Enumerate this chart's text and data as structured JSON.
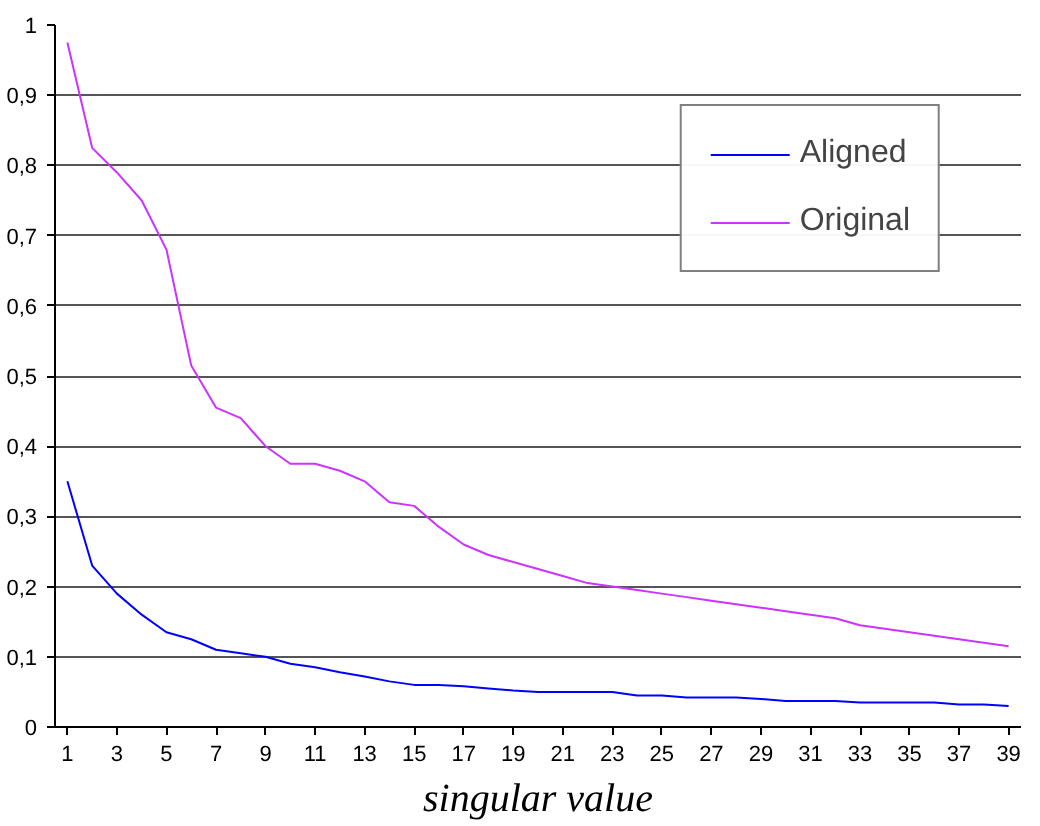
{
  "chart_data": {
    "type": "line",
    "xlabel": "singular value",
    "x": [
      1,
      2,
      3,
      4,
      5,
      6,
      7,
      8,
      9,
      10,
      11,
      12,
      13,
      14,
      15,
      16,
      17,
      18,
      19,
      20,
      21,
      22,
      23,
      24,
      25,
      26,
      27,
      28,
      29,
      30,
      31,
      32,
      33,
      34,
      35,
      36,
      37,
      38,
      39
    ],
    "series": [
      {
        "name": "Aligned",
        "color": "#0000ff",
        "values": [
          0.35,
          0.23,
          0.19,
          0.16,
          0.135,
          0.125,
          0.11,
          0.105,
          0.1,
          0.09,
          0.085,
          0.078,
          0.072,
          0.065,
          0.06,
          0.06,
          0.058,
          0.055,
          0.052,
          0.05,
          0.05,
          0.05,
          0.05,
          0.045,
          0.045,
          0.042,
          0.042,
          0.042,
          0.04,
          0.037,
          0.037,
          0.037,
          0.035,
          0.035,
          0.035,
          0.035,
          0.032,
          0.032,
          0.03
        ]
      },
      {
        "name": "Original",
        "color": "#cc33ff",
        "values": [
          0.975,
          0.825,
          0.79,
          0.75,
          0.68,
          0.515,
          0.455,
          0.44,
          0.4,
          0.375,
          0.375,
          0.365,
          0.35,
          0.32,
          0.315,
          0.285,
          0.26,
          0.245,
          0.235,
          0.225,
          0.215,
          0.205,
          0.2,
          0.195,
          0.19,
          0.185,
          0.18,
          0.175,
          0.17,
          0.165,
          0.16,
          0.155,
          0.145,
          0.14,
          0.135,
          0.13,
          0.125,
          0.12,
          0.115
        ]
      }
    ],
    "xlim": [
      0.5,
      39.5
    ],
    "xticks": [
      1,
      3,
      5,
      7,
      9,
      11,
      13,
      15,
      17,
      19,
      21,
      23,
      25,
      27,
      29,
      31,
      33,
      35,
      37,
      39
    ],
    "ylim": [
      0,
      1
    ],
    "yticks": [
      0,
      {
        "value": 0.1,
        "label": "0,1"
      },
      {
        "value": 0.2,
        "label": "0,2"
      },
      {
        "value": 0.3,
        "label": "0,3"
      },
      {
        "value": 0.4,
        "label": "0,4"
      },
      {
        "value": 0.5,
        "label": "0,5"
      },
      {
        "value": 0.6,
        "label": "0,6"
      },
      {
        "value": 0.7,
        "label": "0,7"
      },
      {
        "value": 0.8,
        "label": "0,8"
      },
      {
        "value": 0.9,
        "label": "0,9"
      },
      1
    ],
    "grid": "y",
    "legend": "top right",
    "line_style": "solid",
    "marker": "none"
  }
}
